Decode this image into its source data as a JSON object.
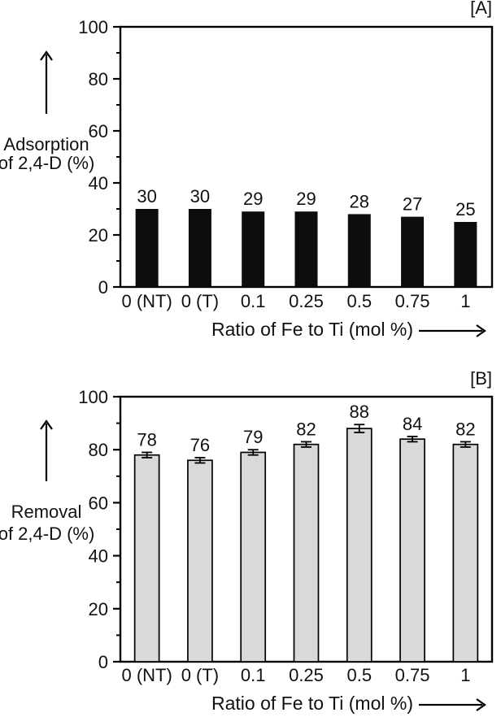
{
  "figure": {
    "background": "#ffffff",
    "text_color": "#111111",
    "axis_color": "#000000",
    "panels": [
      {
        "tag": "[A]",
        "ylabel_lines": [
          "Adsorption",
          "of 2,4-D (%)"
        ],
        "xlabel": "Ratio of Fe to Ti (mol %)",
        "bar_fill": "#0d0d0d",
        "bar_stroke": "none",
        "bar_stroke_width": 0,
        "show_errors": false
      },
      {
        "tag": "[B]",
        "ylabel_lines": [
          "Removal",
          "of 2,4-D (%)"
        ],
        "xlabel": "Ratio of Fe to Ti (mol %)",
        "bar_fill": "#d9d9d9",
        "bar_stroke": "#000000",
        "bar_stroke_width": 1.7,
        "show_errors": true
      }
    ]
  },
  "chart_data": [
    {
      "type": "bar",
      "panel": "A",
      "title": "",
      "categories": [
        "0 (NT)",
        "0 (T)",
        "0.1",
        "0.25",
        "0.5",
        "0.75",
        "1"
      ],
      "values": [
        30,
        30,
        29,
        29,
        28,
        27,
        25
      ],
      "data_labels": [
        "30",
        "30",
        "29",
        "29",
        "28",
        "27",
        "25"
      ],
      "xlabel": "Ratio of Fe to Ti (mol %)",
      "ylabel": "Adsorption of 2,4-D (%)",
      "ylim": [
        0,
        100
      ],
      "yticks": [
        0,
        20,
        40,
        60,
        80,
        100
      ],
      "yticks_minor": [
        10,
        30,
        50,
        70,
        90
      ],
      "grid": false,
      "legend": "none",
      "bar_color_description": "solid black"
    },
    {
      "type": "bar",
      "panel": "B",
      "title": "",
      "categories": [
        "0 (NT)",
        "0 (T)",
        "0.1",
        "0.25",
        "0.5",
        "0.75",
        "1"
      ],
      "values": [
        78,
        76,
        79,
        82,
        88,
        84,
        82
      ],
      "errors": [
        1,
        1,
        1,
        1,
        1.5,
        1,
        1
      ],
      "data_labels": [
        "78",
        "76",
        "79",
        "82",
        "88",
        "84",
        "82"
      ],
      "xlabel": "Ratio of Fe to Ti (mol %)",
      "ylabel": "Removal of 2,4-D (%)",
      "ylim": [
        0,
        100
      ],
      "yticks": [
        0,
        20,
        40,
        60,
        80,
        100
      ],
      "yticks_minor": [
        10,
        30,
        50,
        70,
        90
      ],
      "grid": false,
      "legend": "none",
      "bar_color_description": "light gray with black outline and error bars"
    }
  ]
}
